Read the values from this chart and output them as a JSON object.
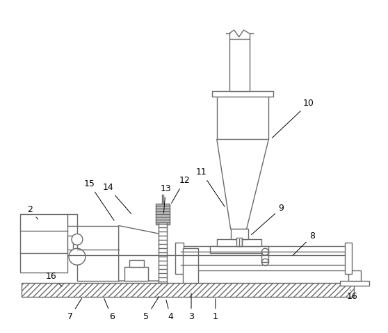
{
  "line_color": "#6a6a6a",
  "bg_color": "#ffffff",
  "figsize": [
    5.58,
    4.79
  ],
  "dpi": 100,
  "lw": 1.0
}
